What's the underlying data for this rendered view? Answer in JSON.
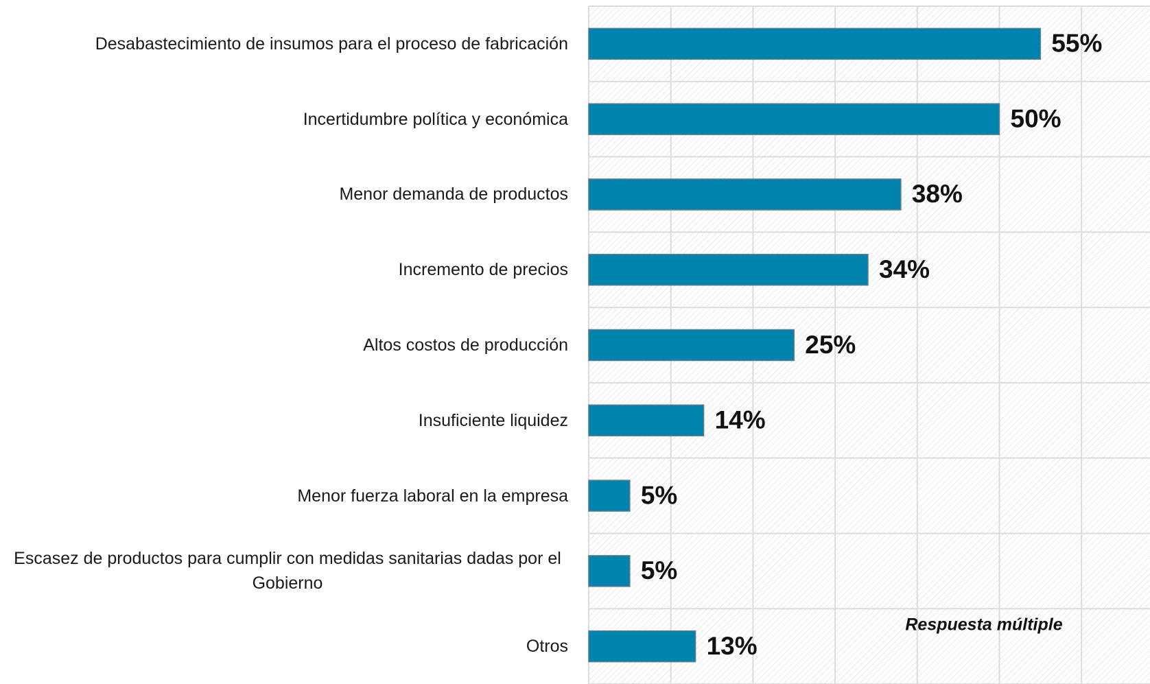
{
  "chart_data": {
    "type": "hbar",
    "categories": [
      "Desabastecimiento de insumos para el proceso de fabricación",
      "Incertidumbre política y económica",
      "Menor demanda de productos",
      "Incremento de precios",
      "Altos costos de producción",
      "Insuficiente liquidez",
      "Menor fuerza laboral en la empresa",
      "Escasez de productos para cumplir con medidas sanitarias dadas por el Gobierno",
      "Otros"
    ],
    "values": [
      55,
      50,
      38,
      34,
      25,
      14,
      5,
      5,
      13
    ],
    "value_labels": [
      "55%",
      "50%",
      "38%",
      "34%",
      "25%",
      "14%",
      "5%",
      "5%",
      "13%"
    ],
    "color": "#0083ad",
    "xlim": [
      0,
      70
    ],
    "xticks": [
      0,
      10,
      20,
      30,
      40,
      50,
      60,
      70
    ],
    "grid": true,
    "annotation": "Respuesta múltiple"
  }
}
